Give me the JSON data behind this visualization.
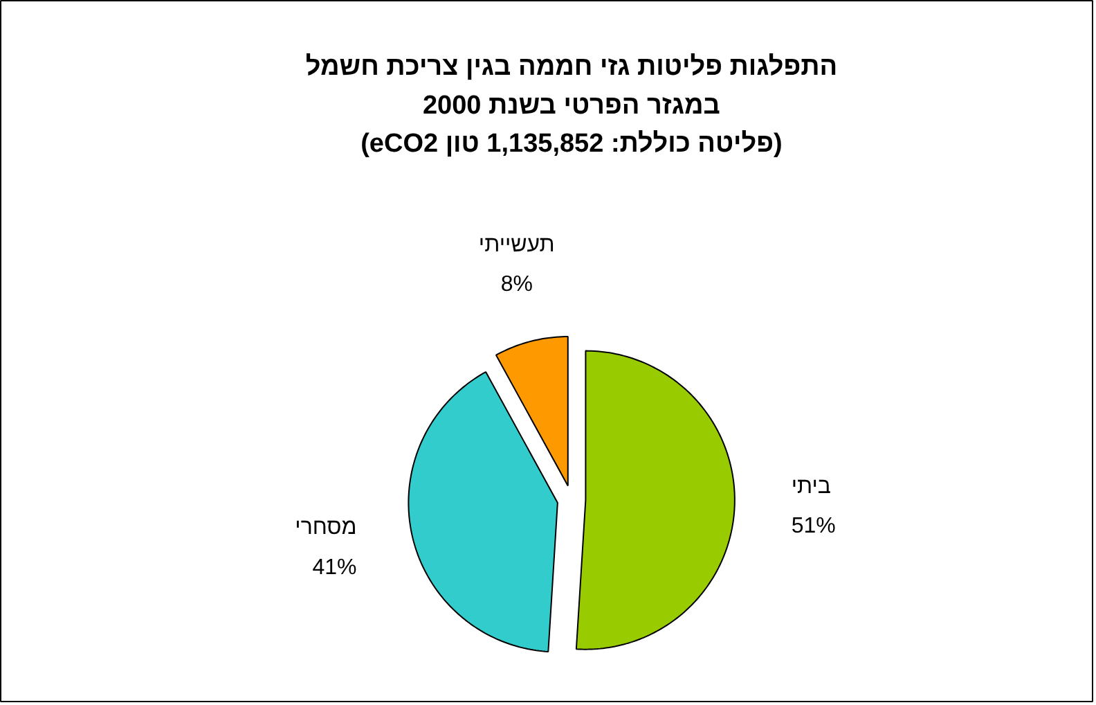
{
  "chart_data": {
    "type": "pie",
    "title": "התפלגות פליטות גזי חממה בגין צריכת חשמל\nבמגזר הפרטי בשנת 2000\n(פליטה כוללת: 1,135,852 טון eCO2)",
    "categories": [
      "ביתי",
      "מסחרי",
      "תעשייתי"
    ],
    "values": [
      51,
      41,
      8
    ],
    "value_labels": [
      "51%",
      "41%",
      "8%"
    ],
    "colors": [
      "#99cc00",
      "#33cccc",
      "#ff9900"
    ]
  }
}
